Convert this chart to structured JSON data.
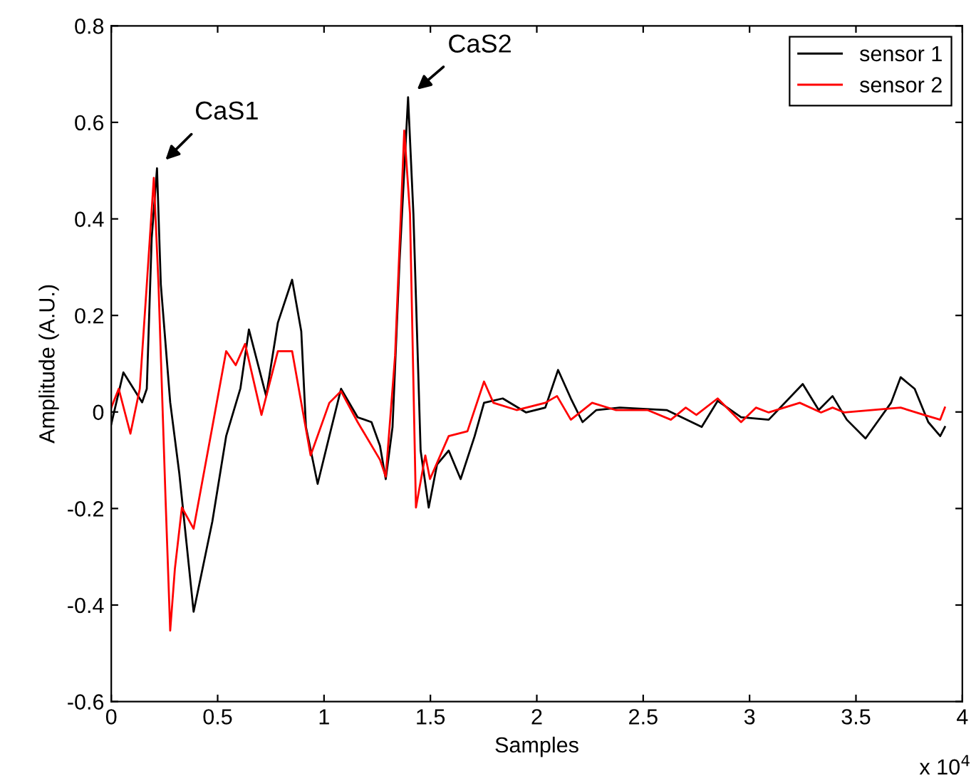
{
  "chart_data": {
    "type": "line",
    "xlabel": "Samples",
    "ylabel": "Amplitude (A.U.)",
    "xlim": [
      0,
      4
    ],
    "xticks": [
      0,
      0.5,
      1,
      1.5,
      2,
      2.5,
      3,
      3.5,
      4
    ],
    "ylim": [
      -0.6,
      0.8
    ],
    "yticks": [
      -0.6,
      -0.4,
      -0.2,
      0,
      0.2,
      0.4,
      0.6,
      0.8
    ],
    "grid": false,
    "legend": "top right",
    "annotations": [
      {
        "text": "CaS1",
        "x": 0.215,
        "y": 0.505
      },
      {
        "text": "CaS2",
        "x": 1.395,
        "y": 0.652
      },
      "x 10$^{4}$"
    ],
    "series": [
      {
        "name": "sensor 1",
        "color": "#000000",
        "x": [
          0,
          0.057,
          0.145,
          0.167,
          0.19,
          0.215,
          0.233,
          0.277,
          0.32,
          0.387,
          0.475,
          0.54,
          0.607,
          0.647,
          0.728,
          0.783,
          0.85,
          0.893,
          0.915,
          0.97,
          1.025,
          1.08,
          1.158,
          1.223,
          1.263,
          1.29,
          1.322,
          1.355,
          1.395,
          1.42,
          1.454,
          1.492,
          1.531,
          1.586,
          1.642,
          1.708,
          1.752,
          1.84,
          1.95,
          2.04,
          2.1,
          2.16,
          2.215,
          2.28,
          2.39,
          2.61,
          2.775,
          2.85,
          2.96,
          3.09,
          3.25,
          3.325,
          3.39,
          3.457,
          3.545,
          3.6,
          3.665,
          3.71,
          3.776,
          3.84,
          3.896,
          3.918
        ],
        "values": [
          -0.025,
          0.082,
          0.02,
          0.048,
          0.36,
          0.505,
          0.264,
          0.02,
          -0.128,
          -0.414,
          -0.227,
          -0.05,
          0.049,
          0.171,
          0.033,
          0.185,
          0.274,
          0.167,
          -0.031,
          -0.149,
          -0.05,
          0.048,
          -0.011,
          -0.021,
          -0.07,
          -0.139,
          -0.031,
          0.313,
          0.652,
          0.411,
          -0.08,
          -0.198,
          -0.109,
          -0.08,
          -0.139,
          -0.05,
          0.019,
          0.028,
          -0.001,
          0.009,
          0.087,
          0.028,
          -0.021,
          0.004,
          0.009,
          0.004,
          -0.031,
          0.023,
          -0.011,
          -0.016,
          0.058,
          0.004,
          0.033,
          -0.016,
          -0.055,
          -0.021,
          0.019,
          0.072,
          0.048,
          -0.021,
          -0.05,
          -0.031
        ]
      },
      {
        "name": "sensor 2",
        "color": "#ff0000",
        "x": [
          0,
          0.035,
          0.09,
          0.134,
          0.167,
          0.2,
          0.222,
          0.255,
          0.277,
          0.299,
          0.332,
          0.387,
          0.475,
          0.54,
          0.585,
          0.629,
          0.706,
          0.783,
          0.85,
          0.937,
          1.025,
          1.08,
          1.158,
          1.263,
          1.29,
          1.334,
          1.377,
          1.404,
          1.432,
          1.476,
          1.498,
          1.586,
          1.674,
          1.752,
          1.796,
          1.905,
          2.04,
          2.095,
          2.16,
          2.26,
          2.37,
          2.52,
          2.63,
          2.7,
          2.75,
          2.85,
          2.96,
          3.03,
          3.09,
          3.236,
          3.336,
          3.39,
          3.446,
          3.71,
          3.82,
          3.896,
          3.918
        ],
        "values": [
          0.009,
          0.048,
          -0.045,
          0.048,
          0.264,
          0.485,
          0.264,
          -0.178,
          -0.453,
          -0.325,
          -0.198,
          -0.242,
          -0.031,
          0.126,
          0.097,
          0.141,
          -0.006,
          0.126,
          0.126,
          -0.09,
          0.019,
          0.043,
          -0.021,
          -0.099,
          -0.134,
          0.117,
          0.583,
          0.411,
          -0.198,
          -0.09,
          -0.139,
          -0.05,
          -0.04,
          0.063,
          0.019,
          0.004,
          0.019,
          0.033,
          -0.016,
          0.019,
          0.004,
          0.004,
          -0.016,
          0.009,
          -0.006,
          0.028,
          -0.021,
          0.009,
          -0.001,
          0.019,
          -0.001,
          0.009,
          -0.001,
          0.009,
          -0.006,
          -0.016,
          0.009
        ]
      }
    ]
  }
}
